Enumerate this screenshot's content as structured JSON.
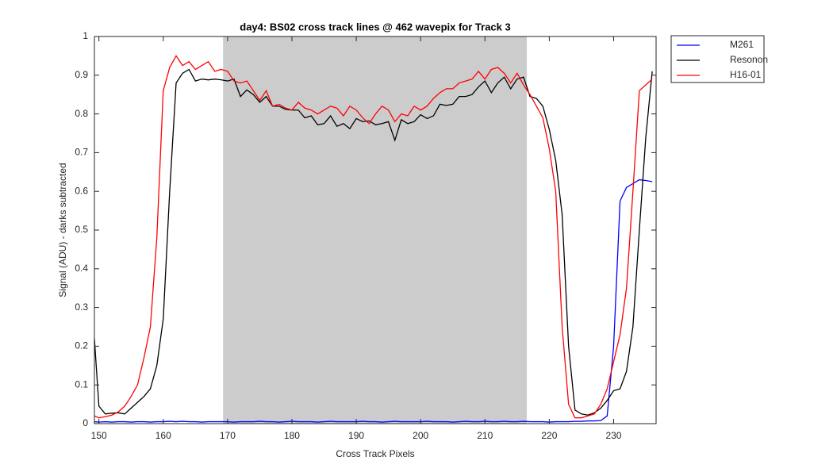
{
  "chart_data": {
    "type": "line",
    "title": "day4: BS02  cross track lines @ 462 wavepix for Track 3",
    "xlabel": "Cross Track Pixels",
    "ylabel": "Signal (ADU) - darks subtracted",
    "xlim": [
      149.3,
      236.6
    ],
    "ylim": [
      0,
      1
    ],
    "xticks": [
      150,
      160,
      170,
      180,
      190,
      200,
      210,
      220,
      230
    ],
    "yticks": [
      0,
      0.1,
      0.2,
      0.3,
      0.4,
      0.5,
      0.6,
      0.7,
      0.8,
      0.9,
      1
    ],
    "shaded_region": [
      169.3,
      216.5
    ],
    "shade_color": "#cccccc",
    "legend": "outside-upper-right",
    "x": [
      149.3,
      150,
      151,
      152,
      153,
      154,
      155,
      156,
      157,
      158,
      159,
      160,
      161,
      162,
      163,
      164,
      165,
      166,
      167,
      168,
      169,
      170,
      171,
      172,
      173,
      174,
      175,
      176,
      177,
      178,
      179,
      180,
      181,
      182,
      183,
      184,
      185,
      186,
      187,
      188,
      189,
      190,
      191,
      192,
      193,
      194,
      195,
      196,
      197,
      198,
      199,
      200,
      201,
      202,
      203,
      204,
      205,
      206,
      207,
      208,
      209,
      210,
      211,
      212,
      213,
      214,
      215,
      216,
      217,
      218,
      219,
      220,
      221,
      222,
      223,
      224,
      225,
      226,
      227,
      228,
      229,
      230,
      231,
      232,
      233,
      234,
      235,
      236
    ],
    "series": [
      {
        "name": "M261",
        "color": "#0000ff",
        "values": [
          0.005,
          0.004,
          0.005,
          0.004,
          0.005,
          0.005,
          0.004,
          0.005,
          0.005,
          0.004,
          0.005,
          0.005,
          0.006,
          0.005,
          0.006,
          0.005,
          0.005,
          0.004,
          0.005,
          0.005,
          0.005,
          0.005,
          0.004,
          0.005,
          0.005,
          0.005,
          0.006,
          0.005,
          0.005,
          0.004,
          0.005,
          0.006,
          0.005,
          0.005,
          0.005,
          0.004,
          0.005,
          0.006,
          0.005,
          0.005,
          0.005,
          0.005,
          0.006,
          0.005,
          0.005,
          0.004,
          0.005,
          0.006,
          0.005,
          0.005,
          0.005,
          0.005,
          0.006,
          0.005,
          0.005,
          0.005,
          0.004,
          0.005,
          0.006,
          0.005,
          0.005,
          0.006,
          0.005,
          0.005,
          0.006,
          0.005,
          0.005,
          0.006,
          0.005,
          0.005,
          0.005,
          0.004,
          0.005,
          0.005,
          0.005,
          0.006,
          0.006,
          0.007,
          0.007,
          0.008,
          0.02,
          0.2,
          0.575,
          0.61,
          0.62,
          0.63,
          0.628,
          0.625
        ]
      },
      {
        "name": "Resonon",
        "color": "#000000",
        "values": [
          0.22,
          0.045,
          0.025,
          0.027,
          0.028,
          0.025,
          0.04,
          0.055,
          0.07,
          0.09,
          0.15,
          0.27,
          0.6,
          0.88,
          0.905,
          0.915,
          0.885,
          0.89,
          0.888,
          0.89,
          0.888,
          0.885,
          0.89,
          0.845,
          0.862,
          0.85,
          0.83,
          0.845,
          0.82,
          0.82,
          0.812,
          0.81,
          0.81,
          0.79,
          0.795,
          0.772,
          0.775,
          0.795,
          0.768,
          0.775,
          0.762,
          0.788,
          0.78,
          0.782,
          0.772,
          0.775,
          0.78,
          0.732,
          0.785,
          0.775,
          0.78,
          0.798,
          0.788,
          0.795,
          0.825,
          0.822,
          0.825,
          0.845,
          0.845,
          0.85,
          0.87,
          0.885,
          0.855,
          0.88,
          0.895,
          0.865,
          0.89,
          0.895,
          0.845,
          0.84,
          0.82,
          0.76,
          0.68,
          0.54,
          0.2,
          0.035,
          0.025,
          0.022,
          0.028,
          0.04,
          0.06,
          0.085,
          0.09,
          0.135,
          0.25,
          0.5,
          0.74,
          0.91
        ]
      },
      {
        "name": "H16-01",
        "color": "#ff0000",
        "values": [
          0.02,
          0.015,
          0.018,
          0.022,
          0.03,
          0.045,
          0.07,
          0.1,
          0.17,
          0.25,
          0.48,
          0.86,
          0.92,
          0.95,
          0.925,
          0.935,
          0.915,
          0.925,
          0.935,
          0.91,
          0.915,
          0.91,
          0.885,
          0.88,
          0.885,
          0.86,
          0.835,
          0.86,
          0.82,
          0.825,
          0.815,
          0.81,
          0.83,
          0.815,
          0.81,
          0.8,
          0.81,
          0.82,
          0.815,
          0.795,
          0.82,
          0.81,
          0.79,
          0.775,
          0.8,
          0.82,
          0.81,
          0.78,
          0.8,
          0.795,
          0.82,
          0.81,
          0.82,
          0.84,
          0.855,
          0.865,
          0.865,
          0.88,
          0.885,
          0.89,
          0.91,
          0.89,
          0.915,
          0.92,
          0.905,
          0.88,
          0.905,
          0.875,
          0.85,
          0.82,
          0.79,
          0.71,
          0.6,
          0.25,
          0.05,
          0.015,
          0.015,
          0.02,
          0.025,
          0.05,
          0.09,
          0.16,
          0.23,
          0.35,
          0.6,
          0.86,
          0.875,
          0.89
        ]
      }
    ]
  }
}
